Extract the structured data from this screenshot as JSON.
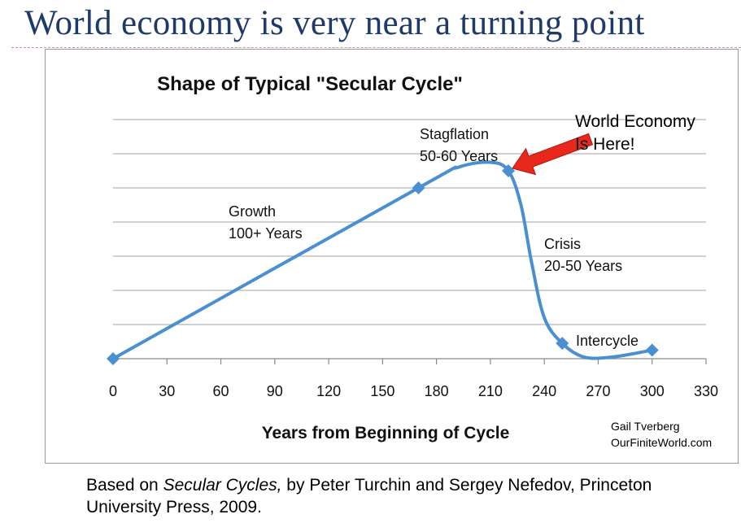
{
  "slide": {
    "title": "World economy is very near a turning point"
  },
  "chart_data": {
    "type": "line",
    "title": "Shape of Typical \"Secular Cycle\"",
    "xlabel": "Years from Beginning of Cycle",
    "ylabel": "",
    "xlim": [
      0,
      330
    ],
    "ylim": [
      0,
      7
    ],
    "xticks": [
      "0",
      "30",
      "60",
      "90",
      "120",
      "150",
      "180",
      "210",
      "240",
      "270",
      "300",
      "330"
    ],
    "grid": true,
    "legend": "none",
    "line_color": "#4a90d0",
    "marker_color": "#4a90d0",
    "series": [
      {
        "markers": [
          {
            "x": 0,
            "y": 0
          },
          {
            "x": 170,
            "y": 5
          },
          {
            "x": 220,
            "y": 5.5
          },
          {
            "x": 250,
            "y": 0.45
          },
          {
            "x": 300,
            "y": 0.25
          }
        ],
        "curve": [
          {
            "x": 0,
            "y": 0
          },
          {
            "x": 170,
            "y": 5
          },
          {
            "x": 192,
            "y": 5.6
          },
          {
            "x": 210,
            "y": 5.75
          },
          {
            "x": 220,
            "y": 5.5
          },
          {
            "x": 227,
            "y": 4.5
          },
          {
            "x": 233,
            "y": 2.8
          },
          {
            "x": 240,
            "y": 1.2
          },
          {
            "x": 250,
            "y": 0.45
          },
          {
            "x": 262,
            "y": 0.05
          },
          {
            "x": 278,
            "y": 0.05
          },
          {
            "x": 300,
            "y": 0.25
          }
        ]
      }
    ],
    "annotations": [
      {
        "key": "growth",
        "lines": [
          "Growth",
          "100+ Years"
        ]
      },
      {
        "key": "stagflation",
        "lines": [
          "Stagflation",
          "50-60 Years"
        ]
      },
      {
        "key": "crisis",
        "lines": [
          "Crisis",
          "20-50 Years"
        ]
      },
      {
        "key": "intercycle",
        "lines": [
          "Intercycle"
        ]
      }
    ],
    "callout": {
      "lines": [
        "World Economy",
        "Is Here!"
      ],
      "arrow_color": "#e8281c"
    },
    "credit": [
      "Gail Tverberg",
      "OurFiniteWorld.com"
    ]
  },
  "footer": {
    "before": "Based on ",
    "book_title": "Secular Cycles,",
    "after": " by Peter Turchin and Sergey Nefedov, Princeton University Press, 2009."
  }
}
